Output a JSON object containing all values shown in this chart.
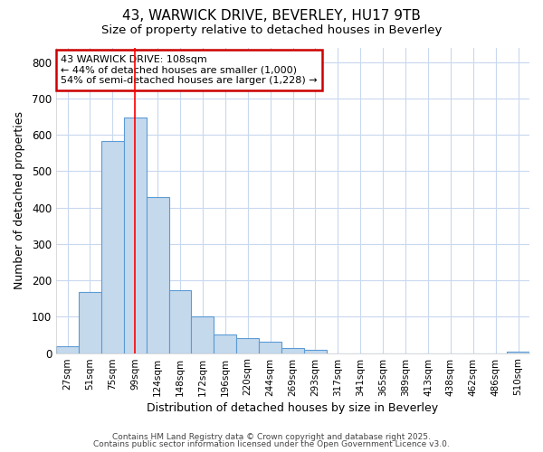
{
  "title1": "43, WARWICK DRIVE, BEVERLEY, HU17 9TB",
  "title2": "Size of property relative to detached houses in Beverley",
  "xlabel": "Distribution of detached houses by size in Beverley",
  "ylabel": "Number of detached properties",
  "bar_labels": [
    "27sqm",
    "51sqm",
    "75sqm",
    "99sqm",
    "124sqm",
    "148sqm",
    "172sqm",
    "196sqm",
    "220sqm",
    "244sqm",
    "269sqm",
    "293sqm",
    "317sqm",
    "341sqm",
    "365sqm",
    "389sqm",
    "413sqm",
    "438sqm",
    "462sqm",
    "486sqm",
    "510sqm"
  ],
  "bar_values": [
    18,
    168,
    582,
    648,
    430,
    174,
    100,
    52,
    40,
    32,
    13,
    10,
    0,
    0,
    0,
    0,
    0,
    0,
    0,
    0,
    5
  ],
  "bar_color": "#c5d9ed",
  "bar_edgecolor": "#5b9bd5",
  "grid_color": "#c8d8ee",
  "background_color": "#ffffff",
  "red_line_x": 3.0,
  "annotation_text": "43 WARWICK DRIVE: 108sqm\n← 44% of detached houses are smaller (1,000)\n54% of semi-detached houses are larger (1,228) →",
  "annotation_box_facecolor": "#ffffff",
  "annotation_box_edgecolor": "#cc0000",
  "footer1": "Contains HM Land Registry data © Crown copyright and database right 2025.",
  "footer2": "Contains public sector information licensed under the Open Government Licence v3.0.",
  "ylim": [
    0,
    840
  ],
  "yticks": [
    0,
    100,
    200,
    300,
    400,
    500,
    600,
    700,
    800
  ]
}
